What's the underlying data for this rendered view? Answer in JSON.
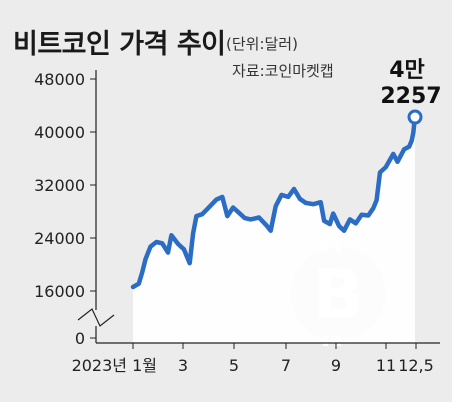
{
  "header": {
    "title": "비트코인 가격 추이",
    "unit": "(단위:달러)",
    "source": "자료:코인마켓캡"
  },
  "chart_data": {
    "type": "area",
    "title": "비트코인 가격 추이",
    "unit": "(단위:달러)",
    "source": "자료:코인마켓캡",
    "xlabel": "",
    "ylabel": "",
    "x_ticks": [
      "2023년 1월",
      "3",
      "5",
      "7",
      "9",
      "11",
      "12,5"
    ],
    "y_ticks": [
      "48000",
      "40000",
      "32000",
      "24000",
      "16000",
      "0"
    ],
    "ylim": [
      0,
      48000
    ],
    "y_axis_break": true,
    "grid": false,
    "series": [
      {
        "values": [
          {
            "x": "2023-01-01",
            "y": 16600
          },
          {
            "x": "2023-01-08",
            "y": 17100
          },
          {
            "x": "2023-01-12",
            "y": 18800
          },
          {
            "x": "2023-01-16",
            "y": 20800
          },
          {
            "x": "2023-01-22",
            "y": 22700
          },
          {
            "x": "2023-01-29",
            "y": 23400
          },
          {
            "x": "2023-02-05",
            "y": 23200
          },
          {
            "x": "2023-02-12",
            "y": 21800
          },
          {
            "x": "2023-02-16",
            "y": 24400
          },
          {
            "x": "2023-02-24",
            "y": 23100
          },
          {
            "x": "2023-03-03",
            "y": 22300
          },
          {
            "x": "2023-03-10",
            "y": 20200
          },
          {
            "x": "2023-03-14",
            "y": 24700
          },
          {
            "x": "2023-03-18",
            "y": 27300
          },
          {
            "x": "2023-03-25",
            "y": 27600
          },
          {
            "x": "2023-04-01",
            "y": 28500
          },
          {
            "x": "2023-04-11",
            "y": 29800
          },
          {
            "x": "2023-04-18",
            "y": 30200
          },
          {
            "x": "2023-04-24",
            "y": 27300
          },
          {
            "x": "2023-05-01",
            "y": 28600
          },
          {
            "x": "2023-05-08",
            "y": 27800
          },
          {
            "x": "2023-05-15",
            "y": 27000
          },
          {
            "x": "2023-05-22",
            "y": 26800
          },
          {
            "x": "2023-06-01",
            "y": 27100
          },
          {
            "x": "2023-06-10",
            "y": 25900
          },
          {
            "x": "2023-06-15",
            "y": 25100
          },
          {
            "x": "2023-06-21",
            "y": 28800
          },
          {
            "x": "2023-06-28",
            "y": 30500
          },
          {
            "x": "2023-07-06",
            "y": 30200
          },
          {
            "x": "2023-07-13",
            "y": 31400
          },
          {
            "x": "2023-07-20",
            "y": 29900
          },
          {
            "x": "2023-07-27",
            "y": 29300
          },
          {
            "x": "2023-08-05",
            "y": 29100
          },
          {
            "x": "2023-08-14",
            "y": 29400
          },
          {
            "x": "2023-08-18",
            "y": 26600
          },
          {
            "x": "2023-08-25",
            "y": 26100
          },
          {
            "x": "2023-08-29",
            "y": 27700
          },
          {
            "x": "2023-09-05",
            "y": 25800
          },
          {
            "x": "2023-09-11",
            "y": 25100
          },
          {
            "x": "2023-09-18",
            "y": 26800
          },
          {
            "x": "2023-09-25",
            "y": 26200
          },
          {
            "x": "2023-10-02",
            "y": 27500
          },
          {
            "x": "2023-10-10",
            "y": 27400
          },
          {
            "x": "2023-10-16",
            "y": 28500
          },
          {
            "x": "2023-10-20",
            "y": 29700
          },
          {
            "x": "2023-10-24",
            "y": 33900
          },
          {
            "x": "2023-10-31",
            "y": 34700
          },
          {
            "x": "2023-11-09",
            "y": 36700
          },
          {
            "x": "2023-11-14",
            "y": 35500
          },
          {
            "x": "2023-11-22",
            "y": 37400
          },
          {
            "x": "2023-11-28",
            "y": 37800
          },
          {
            "x": "2023-12-01",
            "y": 38700
          },
          {
            "x": "2023-12-03",
            "y": 39900
          },
          {
            "x": "2023-12-05",
            "y": 42257
          }
        ]
      }
    ],
    "annotations": [
      {
        "text_line1": "4만",
        "text_line2": "2257",
        "x": "2023-12-05",
        "y": 42257
      }
    ],
    "colors": {
      "line": "#2b6cc4",
      "area": "#ffffff",
      "background": "#ececec",
      "marker_fill": "#ffffff",
      "watermark": "#c8c8c8"
    }
  }
}
